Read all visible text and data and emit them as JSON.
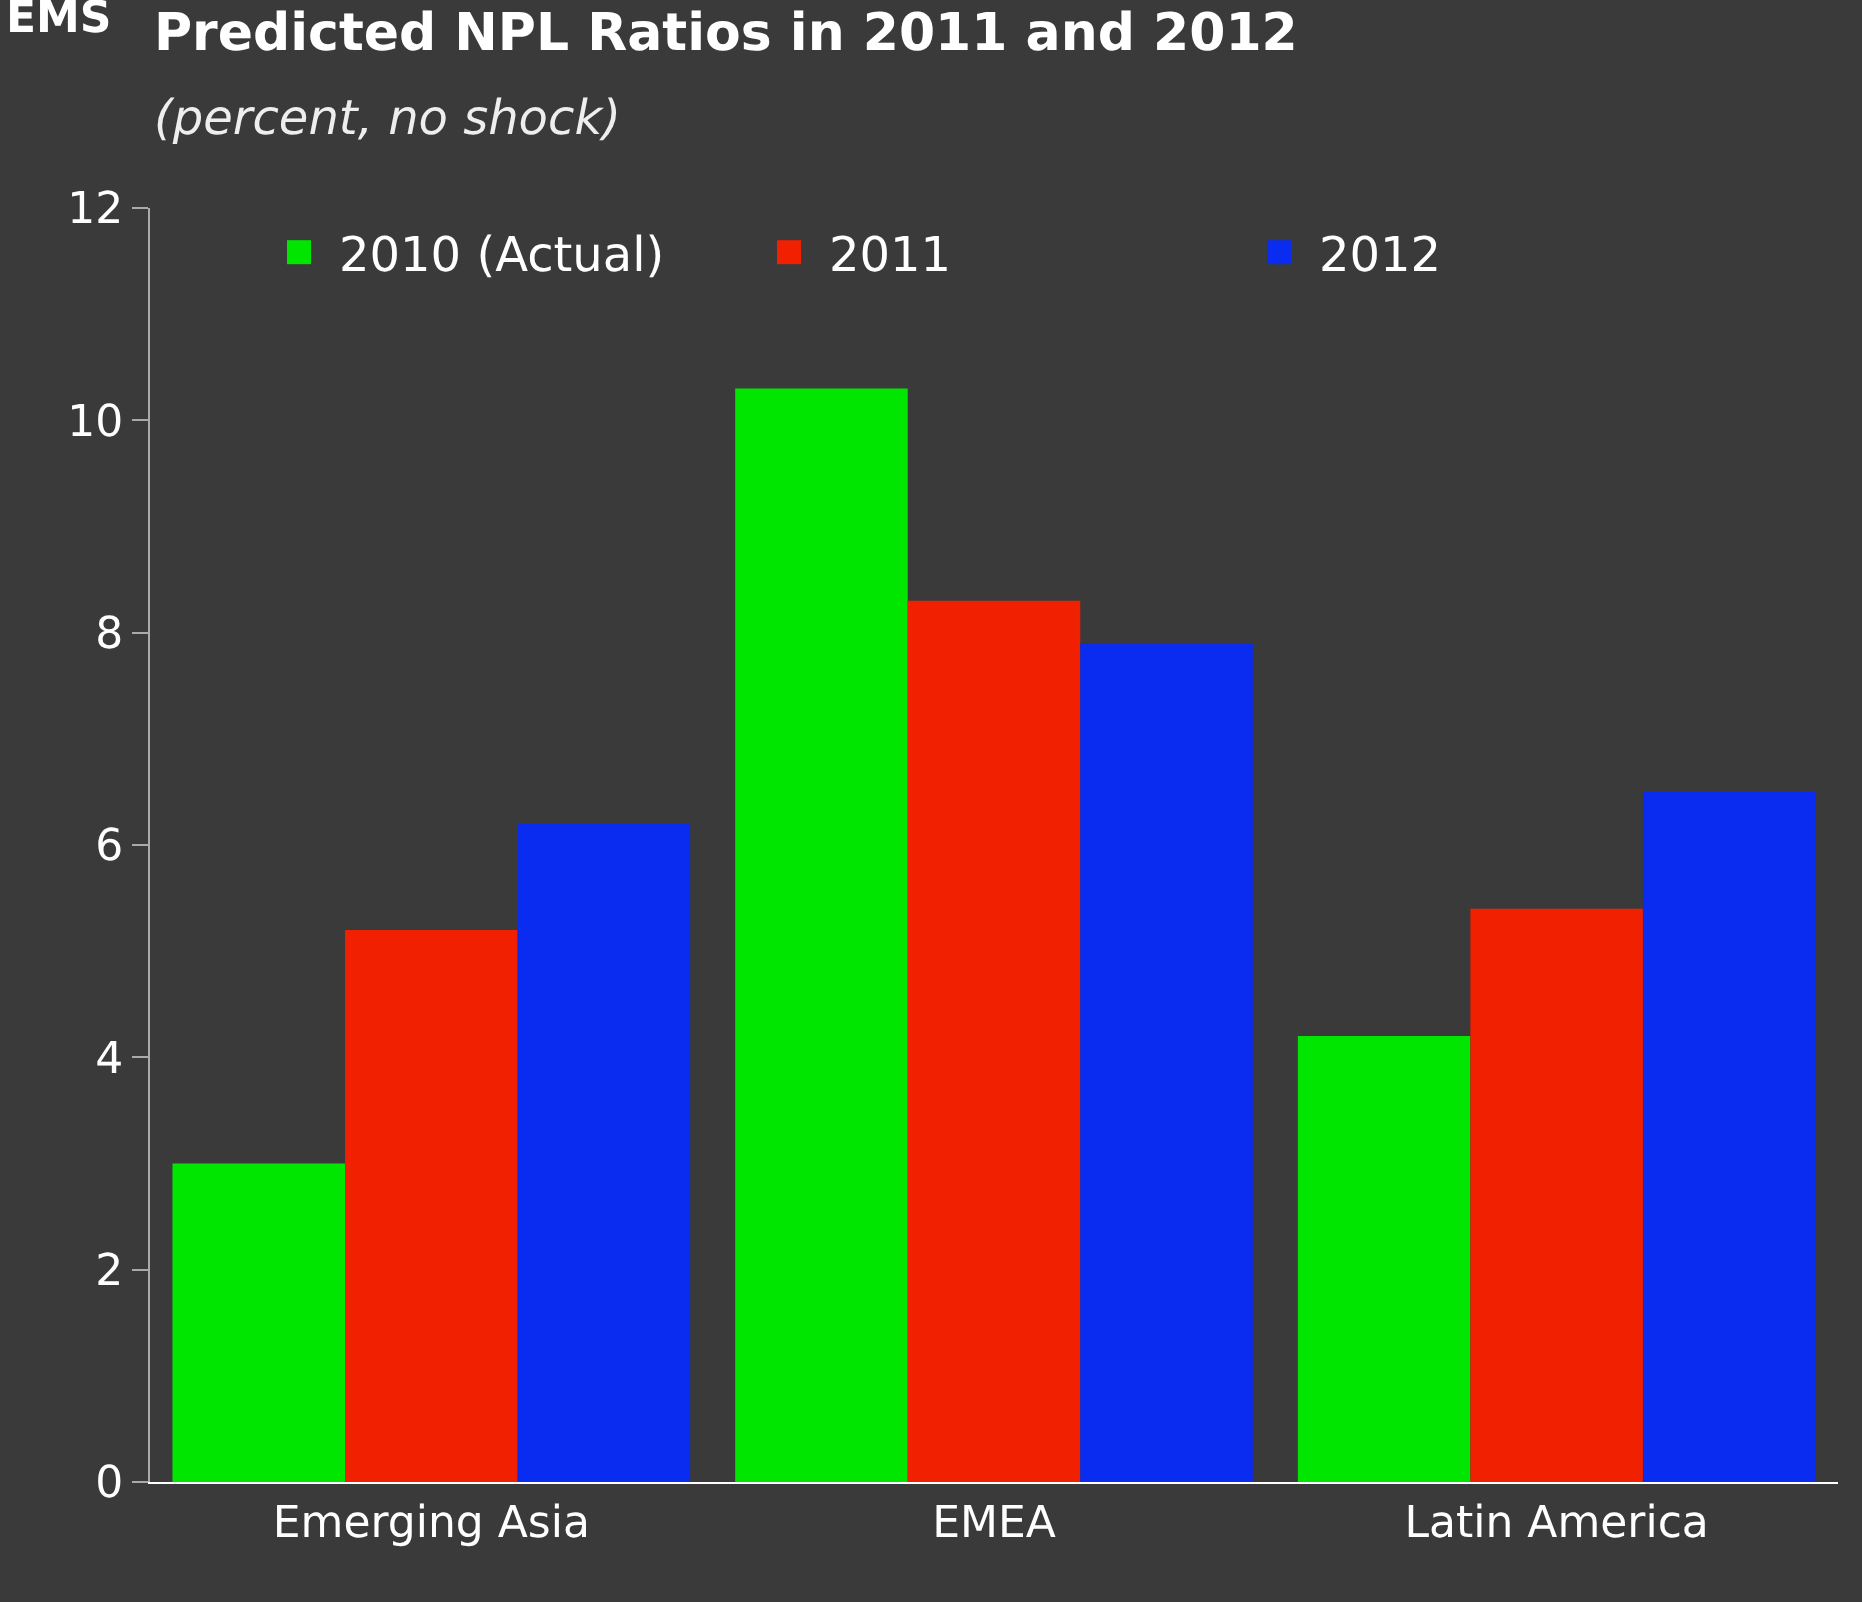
{
  "chart_data": {
    "type": "bar",
    "title": "Predicted NPL Ratios in 2011 and 2012",
    "subtitle": "(percent, no shock)",
    "annotations": [
      "EMS"
    ],
    "categories": [
      "Emerging Asia",
      "EMEA",
      "Latin America"
    ],
    "series": [
      {
        "name": "2010 (Actual)",
        "color": "#00e600",
        "values": [
          3.0,
          10.3,
          4.2
        ]
      },
      {
        "name": "2011",
        "color": "#f02000",
        "values": [
          5.2,
          8.3,
          5.4
        ]
      },
      {
        "name": "2012",
        "color": "#0a2cf0",
        "values": [
          6.2,
          7.9,
          6.5
        ]
      }
    ],
    "ylim": [
      0,
      12
    ],
    "yticks": [
      0,
      2,
      4,
      6,
      8,
      10,
      12
    ],
    "grid": false,
    "legend": "top"
  }
}
